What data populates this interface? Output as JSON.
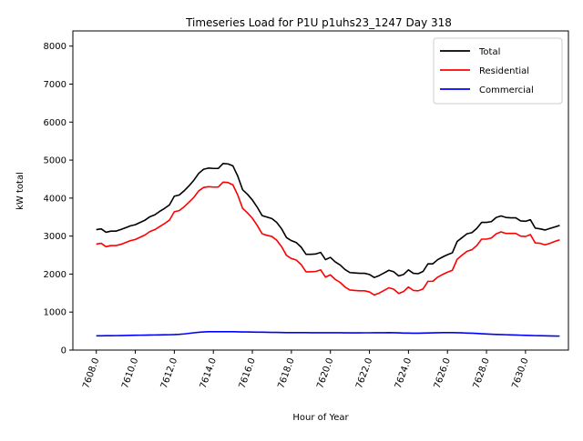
{
  "chart_data": {
    "type": "line",
    "title": "Timeseries Load for P1U p1uhs23_1247  Day 318",
    "xlabel": "Hour of Year",
    "ylabel": "kW total",
    "xlim": [
      7606.8,
      7632.2
    ],
    "ylim": [
      0,
      8400
    ],
    "xticks": [
      7608,
      7610,
      7612,
      7614,
      7616,
      7618,
      7620,
      7622,
      7624,
      7626,
      7628,
      7630
    ],
    "xtick_labels": [
      "7608.0",
      "7610.0",
      "7612.0",
      "7614.0",
      "7616.0",
      "7618.0",
      "7620.0",
      "7622.0",
      "7624.0",
      "7626.0",
      "7628.0",
      "7630.0"
    ],
    "yticks": [
      0,
      1000,
      2000,
      3000,
      4000,
      5000,
      6000,
      7000,
      8000
    ],
    "ytick_labels": [
      "0",
      "1000",
      "2000",
      "3000",
      "4000",
      "5000",
      "6000",
      "7000",
      "8000"
    ],
    "grid": false,
    "legend_position": "top-right",
    "x": [
      7608.0,
      7608.25,
      7608.5,
      7608.75,
      7609.0,
      7609.25,
      7609.5,
      7609.75,
      7610.0,
      7610.25,
      7610.5,
      7610.75,
      7611.0,
      7611.25,
      7611.5,
      7611.75,
      7612.0,
      7612.25,
      7612.5,
      7612.75,
      7613.0,
      7613.25,
      7613.5,
      7613.75,
      7614.0,
      7614.25,
      7614.5,
      7614.75,
      7615.0,
      7615.25,
      7615.5,
      7615.75,
      7616.0,
      7616.25,
      7616.5,
      7616.75,
      7617.0,
      7617.25,
      7617.5,
      7617.75,
      7618.0,
      7618.25,
      7618.5,
      7618.75,
      7619.0,
      7619.25,
      7619.5,
      7619.75,
      7620.0,
      7620.25,
      7620.5,
      7620.75,
      7621.0,
      7621.25,
      7621.5,
      7621.75,
      7622.0,
      7622.25,
      7622.5,
      7622.75,
      7623.0,
      7623.25,
      7623.5,
      7623.75,
      7624.0,
      7624.25,
      7624.5,
      7624.75,
      7625.0,
      7625.25,
      7625.5,
      7625.75,
      7626.0,
      7626.25,
      7626.5,
      7626.75,
      7627.0,
      7627.25,
      7627.5,
      7627.75,
      7628.0,
      7628.25,
      7628.5,
      7628.75,
      7629.0,
      7629.25,
      7629.5,
      7629.75,
      7630.0,
      7630.25,
      7630.5,
      7630.75,
      7631.0,
      7631.25,
      7631.5,
      7631.75
    ],
    "series": [
      {
        "name": "Total",
        "color": "#000000",
        "values": [
          3170,
          3190,
          3100,
          3130,
          3130,
          3170,
          3220,
          3270,
          3300,
          3360,
          3420,
          3510,
          3560,
          3650,
          3730,
          3820,
          4050,
          4080,
          4190,
          4320,
          4470,
          4650,
          4760,
          4790,
          4780,
          4780,
          4910,
          4900,
          4850,
          4580,
          4220,
          4100,
          3950,
          3760,
          3540,
          3500,
          3460,
          3360,
          3190,
          2960,
          2880,
          2830,
          2710,
          2520,
          2520,
          2530,
          2570,
          2380,
          2440,
          2320,
          2240,
          2120,
          2040,
          2030,
          2020,
          2020,
          1990,
          1910,
          1960,
          2030,
          2100,
          2060,
          1950,
          1990,
          2110,
          2020,
          2010,
          2070,
          2270,
          2270,
          2380,
          2450,
          2510,
          2560,
          2860,
          2960,
          3060,
          3090,
          3200,
          3360,
          3360,
          3380,
          3490,
          3530,
          3490,
          3480,
          3480,
          3400,
          3390,
          3430,
          3210,
          3190,
          3160,
          3200,
          3240,
          3280
        ]
      },
      {
        "name": "Residential",
        "color": "#ff0000",
        "values": [
          2790,
          2810,
          2720,
          2750,
          2750,
          2780,
          2830,
          2880,
          2910,
          2970,
          3030,
          3120,
          3170,
          3250,
          3330,
          3420,
          3640,
          3670,
          3770,
          3890,
          4020,
          4190,
          4280,
          4300,
          4290,
          4290,
          4420,
          4410,
          4350,
          4080,
          3730,
          3610,
          3470,
          3280,
          3060,
          3020,
          2990,
          2890,
          2720,
          2490,
          2410,
          2370,
          2250,
          2060,
          2060,
          2070,
          2110,
          1920,
          1980,
          1860,
          1780,
          1660,
          1580,
          1570,
          1560,
          1560,
          1530,
          1450,
          1500,
          1570,
          1640,
          1600,
          1490,
          1540,
          1660,
          1570,
          1560,
          1610,
          1810,
          1810,
          1920,
          1990,
          2050,
          2100,
          2390,
          2500,
          2600,
          2640,
          2750,
          2920,
          2920,
          2950,
          3060,
          3110,
          3070,
          3070,
          3070,
          3000,
          2990,
          3040,
          2820,
          2810,
          2770,
          2810,
          2860,
          2900
        ]
      },
      {
        "name": "Commercial",
        "color": "#0000ff",
        "values": [
          375,
          375,
          378,
          378,
          380,
          382,
          385,
          388,
          390,
          392,
          394,
          396,
          398,
          400,
          402,
          404,
          408,
          415,
          425,
          440,
          455,
          468,
          478,
          482,
          482,
          482,
          484,
          484,
          482,
          480,
          478,
          476,
          474,
          472,
          470,
          468,
          466,
          464,
          462,
          460,
          460,
          460,
          460,
          458,
          456,
          456,
          456,
          456,
          456,
          456,
          456,
          454,
          454,
          454,
          454,
          455,
          455,
          456,
          456,
          457,
          458,
          456,
          452,
          448,
          446,
          444,
          444,
          446,
          450,
          454,
          456,
          458,
          458,
          458,
          456,
          452,
          448,
          444,
          438,
          430,
          424,
          418,
          412,
          408,
          404,
          400,
          396,
          392,
          388,
          384,
          380,
          378,
          375,
          372,
          370,
          368
        ]
      }
    ]
  }
}
